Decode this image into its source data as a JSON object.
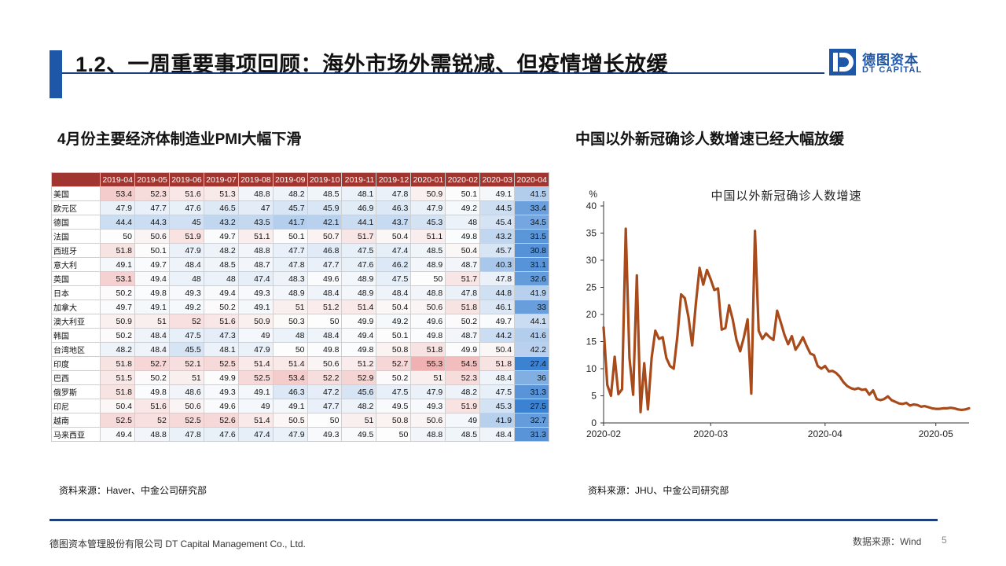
{
  "header": {
    "title": "1.2、一周重要事项回顾：海外市场外需锐减、但疫情增长放缓",
    "logo_cn": "德图资本",
    "logo_en": "DT CAPITAL",
    "accent_color": "#1f57a8"
  },
  "left": {
    "subtitle": "4月份主要经济体制造业PMI大幅下滑",
    "source": "资料来源：Haver、中金公司研究部",
    "table": {
      "columns": [
        "2019-04",
        "2019-05",
        "2019-06",
        "2019-07",
        "2019-08",
        "2019-09",
        "2019-10",
        "2019-11",
        "2019-12",
        "2020-01",
        "2020-02",
        "2020-03",
        "2020-04"
      ],
      "rows": [
        {
          "country": "美国",
          "values": [
            53.4,
            52.3,
            51.6,
            51.3,
            48.8,
            48.2,
            48.5,
            48.1,
            47.8,
            50.9,
            50.1,
            49.1,
            41.5
          ]
        },
        {
          "country": "欧元区",
          "values": [
            47.9,
            47.7,
            47.6,
            46.5,
            47,
            45.7,
            45.9,
            46.9,
            46.3,
            47.9,
            49.2,
            44.5,
            33.4
          ]
        },
        {
          "country": "德国",
          "values": [
            44.4,
            44.3,
            45,
            43.2,
            43.5,
            41.7,
            42.1,
            44.1,
            43.7,
            45.3,
            48,
            45.4,
            34.5
          ]
        },
        {
          "country": "法国",
          "values": [
            50,
            50.6,
            51.9,
            49.7,
            51.1,
            50.1,
            50.7,
            51.7,
            50.4,
            51.1,
            49.8,
            43.2,
            31.5
          ]
        },
        {
          "country": "西班牙",
          "values": [
            51.8,
            50.1,
            47.9,
            48.2,
            48.8,
            47.7,
            46.8,
            47.5,
            47.4,
            48.5,
            50.4,
            45.7,
            30.8
          ]
        },
        {
          "country": "意大利",
          "values": [
            49.1,
            49.7,
            48.4,
            48.5,
            48.7,
            47.8,
            47.7,
            47.6,
            46.2,
            48.9,
            48.7,
            40.3,
            31.1
          ]
        },
        {
          "country": "英国",
          "values": [
            53.1,
            49.4,
            48,
            48,
            47.4,
            48.3,
            49.6,
            48.9,
            47.5,
            50,
            51.7,
            47.8,
            32.6
          ]
        },
        {
          "country": "日本",
          "values": [
            50.2,
            49.8,
            49.3,
            49.4,
            49.3,
            48.9,
            48.4,
            48.9,
            48.4,
            48.8,
            47.8,
            44.8,
            41.9
          ]
        },
        {
          "country": "加拿大",
          "values": [
            49.7,
            49.1,
            49.2,
            50.2,
            49.1,
            51,
            51.2,
            51.4,
            50.4,
            50.6,
            51.8,
            46.1,
            33
          ]
        },
        {
          "country": "澳大利亚",
          "values": [
            50.9,
            51,
            52,
            51.6,
            50.9,
            50.3,
            50,
            49.9,
            49.2,
            49.6,
            50.2,
            49.7,
            44.1
          ]
        },
        {
          "country": "韩国",
          "values": [
            50.2,
            48.4,
            47.5,
            47.3,
            49,
            48,
            48.4,
            49.4,
            50.1,
            49.8,
            48.7,
            44.2,
            41.6
          ]
        },
        {
          "country": "台湾地区",
          "values": [
            48.2,
            48.4,
            45.5,
            48.1,
            47.9,
            50,
            49.8,
            49.8,
            50.8,
            51.8,
            49.9,
            50.4,
            42.2
          ]
        },
        {
          "country": "印度",
          "values": [
            51.8,
            52.7,
            52.1,
            52.5,
            51.4,
            51.4,
            50.6,
            51.2,
            52.7,
            55.3,
            54.5,
            51.8,
            27.4
          ]
        },
        {
          "country": "巴西",
          "values": [
            51.5,
            50.2,
            51,
            49.9,
            52.5,
            53.4,
            52.2,
            52.9,
            50.2,
            51,
            52.3,
            48.4,
            36
          ]
        },
        {
          "country": "俄罗斯",
          "values": [
            51.8,
            49.8,
            48.6,
            49.3,
            49.1,
            46.3,
            47.2,
            45.6,
            47.5,
            47.9,
            48.2,
            47.5,
            31.3
          ]
        },
        {
          "country": "印尼",
          "values": [
            50.4,
            51.6,
            50.6,
            49.6,
            49,
            49.1,
            47.7,
            48.2,
            49.5,
            49.3,
            51.9,
            45.3,
            27.5
          ]
        },
        {
          "country": "越南",
          "values": [
            52.5,
            52,
            52.5,
            52.6,
            51.4,
            50.5,
            50,
            51,
            50.8,
            50.6,
            49,
            41.9,
            32.7
          ]
        },
        {
          "country": "马来西亚",
          "values": [
            49.4,
            48.8,
            47.8,
            47.6,
            47.4,
            47.9,
            49.3,
            49.5,
            50,
            48.8,
            48.5,
            48.4,
            31.3
          ]
        }
      ]
    }
  },
  "right": {
    "subtitle": "中国以外新冠确诊人数增速已经大幅放缓",
    "source": "资料来源：JHU、中金公司研究部"
  },
  "chart_data": {
    "type": "line",
    "title": "中国以外新冠确诊人数增速",
    "ylabel": "%",
    "xlabel": "",
    "ylim": [
      0,
      40
    ],
    "yticks": [
      0,
      5,
      10,
      15,
      20,
      25,
      30,
      35,
      40
    ],
    "xticks": [
      "2020-02",
      "2020-03",
      "2020-04",
      "2020-05"
    ],
    "x_range": [
      "2020-02-01",
      "2020-05-10"
    ],
    "grid": false,
    "series_color": "#a84a1a",
    "series": [
      {
        "values": [
          {
            "x": "2020-02-01",
            "y": 17.6
          },
          {
            "x": "2020-02-02",
            "y": 7
          },
          {
            "x": "2020-02-03",
            "y": 5
          },
          {
            "x": "2020-02-04",
            "y": 12.2
          },
          {
            "x": "2020-02-05",
            "y": 5.3
          },
          {
            "x": "2020-02-06",
            "y": 6.2
          },
          {
            "x": "2020-02-07",
            "y": 35.8
          },
          {
            "x": "2020-02-08",
            "y": 12
          },
          {
            "x": "2020-02-09",
            "y": 5.2
          },
          {
            "x": "2020-02-10",
            "y": 27.2
          },
          {
            "x": "2020-02-11",
            "y": 2
          },
          {
            "x": "2020-02-12",
            "y": 11
          },
          {
            "x": "2020-02-13",
            "y": 2.5
          },
          {
            "x": "2020-02-14",
            "y": 12
          },
          {
            "x": "2020-02-15",
            "y": 17
          },
          {
            "x": "2020-02-16",
            "y": 15.5
          },
          {
            "x": "2020-02-17",
            "y": 15.8
          },
          {
            "x": "2020-02-18",
            "y": 12
          },
          {
            "x": "2020-02-19",
            "y": 10.5
          },
          {
            "x": "2020-02-20",
            "y": 10
          },
          {
            "x": "2020-02-21",
            "y": 16
          },
          {
            "x": "2020-02-22",
            "y": 23.7
          },
          {
            "x": "2020-02-23",
            "y": 23
          },
          {
            "x": "2020-02-24",
            "y": 19.5
          },
          {
            "x": "2020-02-25",
            "y": 14.3
          },
          {
            "x": "2020-02-26",
            "y": 22
          },
          {
            "x": "2020-02-27",
            "y": 28.6
          },
          {
            "x": "2020-02-28",
            "y": 25.5
          },
          {
            "x": "2020-02-29",
            "y": 28.2
          },
          {
            "x": "2020-03-01",
            "y": 26.5
          },
          {
            "x": "2020-03-02",
            "y": 24.5
          },
          {
            "x": "2020-03-03",
            "y": 24.8
          },
          {
            "x": "2020-03-04",
            "y": 17.2
          },
          {
            "x": "2020-03-05",
            "y": 17.5
          },
          {
            "x": "2020-03-06",
            "y": 21.7
          },
          {
            "x": "2020-03-07",
            "y": 19
          },
          {
            "x": "2020-03-08",
            "y": 15.3
          },
          {
            "x": "2020-03-09",
            "y": 13.2
          },
          {
            "x": "2020-03-10",
            "y": 15.8
          },
          {
            "x": "2020-03-11",
            "y": 19.1
          },
          {
            "x": "2020-03-12",
            "y": 5.4
          },
          {
            "x": "2020-03-13",
            "y": 35.4
          },
          {
            "x": "2020-03-14",
            "y": 17
          },
          {
            "x": "2020-03-15",
            "y": 15.5
          },
          {
            "x": "2020-03-16",
            "y": 16.5
          },
          {
            "x": "2020-03-17",
            "y": 15.8
          },
          {
            "x": "2020-03-18",
            "y": 15.3
          },
          {
            "x": "2020-03-19",
            "y": 20.7
          },
          {
            "x": "2020-03-20",
            "y": 18.5
          },
          {
            "x": "2020-03-21",
            "y": 16.2
          },
          {
            "x": "2020-03-22",
            "y": 14.5
          },
          {
            "x": "2020-03-23",
            "y": 16
          },
          {
            "x": "2020-03-24",
            "y": 13.5
          },
          {
            "x": "2020-03-25",
            "y": 14.5
          },
          {
            "x": "2020-03-26",
            "y": 15.8
          },
          {
            "x": "2020-03-27",
            "y": 14.2
          },
          {
            "x": "2020-03-28",
            "y": 12.8
          },
          {
            "x": "2020-03-29",
            "y": 12.5
          },
          {
            "x": "2020-03-30",
            "y": 10.5
          },
          {
            "x": "2020-03-31",
            "y": 10
          },
          {
            "x": "2020-04-01",
            "y": 10.5
          },
          {
            "x": "2020-04-02",
            "y": 9.5
          },
          {
            "x": "2020-04-03",
            "y": 9.6
          },
          {
            "x": "2020-04-04",
            "y": 9.2
          },
          {
            "x": "2020-04-05",
            "y": 8.5
          },
          {
            "x": "2020-04-06",
            "y": 7.5
          },
          {
            "x": "2020-04-07",
            "y": 6.8
          },
          {
            "x": "2020-04-08",
            "y": 6.4
          },
          {
            "x": "2020-04-09",
            "y": 6.2
          },
          {
            "x": "2020-04-10",
            "y": 6.4
          },
          {
            "x": "2020-04-11",
            "y": 6.1
          },
          {
            "x": "2020-04-12",
            "y": 6.2
          },
          {
            "x": "2020-04-13",
            "y": 5.2
          },
          {
            "x": "2020-04-14",
            "y": 6
          },
          {
            "x": "2020-04-15",
            "y": 4.4
          },
          {
            "x": "2020-04-16",
            "y": 4.2
          },
          {
            "x": "2020-04-17",
            "y": 4.4
          },
          {
            "x": "2020-04-18",
            "y": 4.9
          },
          {
            "x": "2020-04-19",
            "y": 4.2
          },
          {
            "x": "2020-04-20",
            "y": 3.9
          },
          {
            "x": "2020-04-21",
            "y": 3.6
          },
          {
            "x": "2020-04-22",
            "y": 3.5
          },
          {
            "x": "2020-04-23",
            "y": 3.7
          },
          {
            "x": "2020-04-24",
            "y": 3.2
          },
          {
            "x": "2020-04-25",
            "y": 3.4
          },
          {
            "x": "2020-04-26",
            "y": 3.3
          },
          {
            "x": "2020-04-27",
            "y": 3
          },
          {
            "x": "2020-04-28",
            "y": 3.1
          },
          {
            "x": "2020-04-29",
            "y": 2.9
          },
          {
            "x": "2020-04-30",
            "y": 2.7
          },
          {
            "x": "2020-05-01",
            "y": 2.6
          },
          {
            "x": "2020-05-02",
            "y": 2.6
          },
          {
            "x": "2020-05-03",
            "y": 2.7
          },
          {
            "x": "2020-05-04",
            "y": 2.7
          },
          {
            "x": "2020-05-05",
            "y": 2.8
          },
          {
            "x": "2020-05-06",
            "y": 2.7
          },
          {
            "x": "2020-05-07",
            "y": 2.5
          },
          {
            "x": "2020-05-08",
            "y": 2.4
          },
          {
            "x": "2020-05-09",
            "y": 2.5
          },
          {
            "x": "2020-05-10",
            "y": 2.7
          }
        ]
      }
    ]
  },
  "footer": {
    "company": "德图资本管理股份有限公司  DT Capital  Management  Co., Ltd.",
    "data_source": "数据来源：Wind",
    "page": "5"
  }
}
